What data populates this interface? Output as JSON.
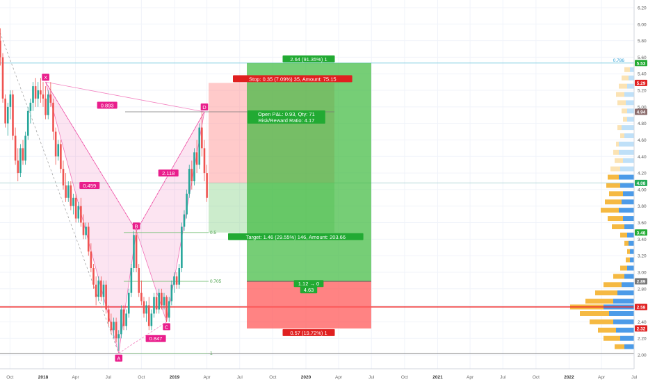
{
  "chart_data": {
    "type": "candlestick",
    "title": "",
    "xlabel": "",
    "ylabel": "",
    "ylim": [
      2.0,
      6.3
    ],
    "y_ticks": [
      2.0,
      2.2,
      2.4,
      2.6,
      2.8,
      3.0,
      3.2,
      3.4,
      3.6,
      3.8,
      4.0,
      4.2,
      4.4,
      4.6,
      4.8,
      5.0,
      5.2,
      5.4,
      5.6,
      5.8,
      6.0,
      6.2
    ],
    "y_tick_labels": [
      "2.00",
      "2.20",
      "2.40",
      "2.60",
      "2.80",
      "3.00",
      "3.20",
      "3.40",
      "3.60",
      "3.80",
      "4.00",
      "4.20",
      "4.40",
      "4.60",
      "4.80",
      "5.00",
      "5.20",
      "5.40",
      "5.60",
      "5.80",
      "6.00",
      "6.20"
    ],
    "x_ticks": [
      {
        "date": "2017-10-01",
        "label": "Oct"
      },
      {
        "date": "2018-01-01",
        "label": "2018"
      },
      {
        "date": "2018-04-01",
        "label": "Apr"
      },
      {
        "date": "2018-07-01",
        "label": "Jul"
      },
      {
        "date": "2018-10-01",
        "label": "Oct"
      },
      {
        "date": "2019-01-01",
        "label": "2019"
      },
      {
        "date": "2019-04-01",
        "label": "Apr"
      },
      {
        "date": "2019-07-01",
        "label": "Jul"
      },
      {
        "date": "2019-10-01",
        "label": "Oct"
      },
      {
        "date": "2020-01-01",
        "label": "2020"
      },
      {
        "date": "2020-04-01",
        "label": "Apr"
      },
      {
        "date": "2020-07-01",
        "label": "Jul"
      },
      {
        "date": "2020-10-01",
        "label": "Oct"
      },
      {
        "date": "2021-01-01",
        "label": "2021"
      },
      {
        "date": "2021-04-01",
        "label": "Apr"
      },
      {
        "date": "2021-07-01",
        "label": "Jul"
      },
      {
        "date": "2021-10-01",
        "label": "Oct"
      },
      {
        "date": "2022-01-01",
        "label": "2022"
      },
      {
        "date": "2022-04-01",
        "label": "Apr"
      },
      {
        "date": "2022-07-01",
        "label": "Jul"
      }
    ],
    "candles": [
      [
        "2017-09-04",
        5.8,
        5.95,
        5.5,
        5.6
      ],
      [
        "2017-09-11",
        5.6,
        5.65,
        5.05,
        5.1
      ],
      [
        "2017-09-18",
        5.1,
        5.15,
        4.75,
        4.8
      ],
      [
        "2017-09-25",
        4.8,
        5.05,
        4.65,
        5.0
      ],
      [
        "2017-10-02",
        5.0,
        5.2,
        4.85,
        5.15
      ],
      [
        "2017-10-09",
        5.15,
        5.2,
        4.6,
        4.65
      ],
      [
        "2017-10-16",
        4.65,
        4.75,
        4.3,
        4.35
      ],
      [
        "2017-10-23",
        4.35,
        4.5,
        4.1,
        4.2
      ],
      [
        "2017-10-30",
        4.2,
        4.55,
        4.15,
        4.5
      ],
      [
        "2017-11-06",
        4.5,
        4.6,
        4.3,
        4.35
      ],
      [
        "2017-11-13",
        4.35,
        4.7,
        4.3,
        4.65
      ],
      [
        "2017-11-20",
        4.65,
        5.0,
        4.6,
        4.95
      ],
      [
        "2017-11-27",
        4.95,
        5.1,
        4.8,
        5.05
      ],
      [
        "2017-12-04",
        5.05,
        5.3,
        4.95,
        5.25
      ],
      [
        "2017-12-11",
        5.25,
        5.35,
        5.0,
        5.1
      ],
      [
        "2017-12-18",
        5.1,
        5.3,
        5.0,
        5.2
      ],
      [
        "2017-12-25",
        5.2,
        5.35,
        5.05,
        5.15
      ],
      [
        "2018-01-01",
        5.15,
        5.3,
        5.0,
        5.1
      ],
      [
        "2018-01-08",
        5.1,
        5.25,
        4.85,
        4.9
      ],
      [
        "2018-01-15",
        4.9,
        5.2,
        4.85,
        5.15
      ],
      [
        "2018-01-22",
        5.15,
        5.3,
        5.0,
        5.05
      ],
      [
        "2018-01-29",
        5.05,
        5.1,
        4.6,
        4.7
      ],
      [
        "2018-02-05",
        4.7,
        4.75,
        4.3,
        4.4
      ],
      [
        "2018-02-12",
        4.4,
        4.6,
        4.35,
        4.55
      ],
      [
        "2018-02-19",
        4.55,
        4.6,
        4.2,
        4.25
      ],
      [
        "2018-02-26",
        4.25,
        4.35,
        4.0,
        4.05
      ],
      [
        "2018-03-05",
        4.05,
        4.2,
        3.85,
        3.9
      ],
      [
        "2018-03-12",
        3.9,
        4.1,
        3.85,
        4.05
      ],
      [
        "2018-03-19",
        4.05,
        4.1,
        3.75,
        3.8
      ],
      [
        "2018-03-26",
        3.8,
        3.95,
        3.7,
        3.9
      ],
      [
        "2018-04-02",
        3.9,
        3.95,
        3.6,
        3.65
      ],
      [
        "2018-04-09",
        3.65,
        3.85,
        3.6,
        3.8
      ],
      [
        "2018-04-16",
        3.8,
        3.9,
        3.55,
        3.6
      ],
      [
        "2018-04-23",
        3.6,
        3.7,
        3.4,
        3.45
      ],
      [
        "2018-04-30",
        3.45,
        3.6,
        3.4,
        3.55
      ],
      [
        "2018-05-07",
        3.55,
        3.6,
        3.2,
        3.25
      ],
      [
        "2018-05-14",
        3.25,
        3.35,
        3.0,
        3.05
      ],
      [
        "2018-05-21",
        3.05,
        3.1,
        2.8,
        2.85
      ],
      [
        "2018-05-28",
        2.85,
        2.95,
        2.6,
        2.7
      ],
      [
        "2018-06-04",
        2.7,
        2.95,
        2.65,
        2.9
      ],
      [
        "2018-06-11",
        2.9,
        2.95,
        2.65,
        2.7
      ],
      [
        "2018-06-18",
        2.7,
        2.9,
        2.6,
        2.85
      ],
      [
        "2018-06-25",
        2.85,
        2.9,
        2.5,
        2.55
      ],
      [
        "2018-07-02",
        2.55,
        2.6,
        2.35,
        2.4
      ],
      [
        "2018-07-09",
        2.4,
        2.5,
        2.25,
        2.3
      ],
      [
        "2018-07-16",
        2.3,
        2.45,
        2.2,
        2.4
      ],
      [
        "2018-07-23",
        2.4,
        2.45,
        2.15,
        2.2
      ],
      [
        "2018-07-30",
        2.2,
        2.3,
        2.05,
        2.25
      ],
      [
        "2018-08-06",
        2.25,
        2.6,
        2.2,
        2.55
      ],
      [
        "2018-08-13",
        2.55,
        2.6,
        2.3,
        2.35
      ],
      [
        "2018-08-20",
        2.35,
        2.55,
        2.3,
        2.5
      ],
      [
        "2018-08-27",
        2.5,
        2.8,
        2.45,
        2.75
      ],
      [
        "2018-09-03",
        2.75,
        3.1,
        2.7,
        3.05
      ],
      [
        "2018-09-10",
        3.05,
        3.5,
        3.0,
        3.45
      ],
      [
        "2018-09-17",
        3.45,
        3.5,
        3.0,
        3.05
      ],
      [
        "2018-09-24",
        3.05,
        3.1,
        2.7,
        2.75
      ],
      [
        "2018-10-01",
        2.75,
        2.9,
        2.6,
        2.65
      ],
      [
        "2018-10-08",
        2.65,
        2.7,
        2.45,
        2.5
      ],
      [
        "2018-10-15",
        2.5,
        2.65,
        2.4,
        2.6
      ],
      [
        "2018-10-22",
        2.6,
        2.7,
        2.3,
        2.35
      ],
      [
        "2018-10-29",
        2.35,
        2.55,
        2.3,
        2.5
      ],
      [
        "2018-11-05",
        2.5,
        2.75,
        2.45,
        2.7
      ],
      [
        "2018-11-12",
        2.7,
        2.75,
        2.5,
        2.55
      ],
      [
        "2018-11-19",
        2.55,
        2.8,
        2.5,
        2.75
      ],
      [
        "2018-11-26",
        2.75,
        2.8,
        2.55,
        2.6
      ],
      [
        "2018-12-03",
        2.6,
        2.75,
        2.55,
        2.7
      ],
      [
        "2018-12-10",
        2.7,
        2.72,
        2.4,
        2.45
      ],
      [
        "2018-12-17",
        2.45,
        2.7,
        2.4,
        2.65
      ],
      [
        "2018-12-24",
        2.65,
        2.9,
        2.6,
        2.85
      ],
      [
        "2018-12-31",
        2.85,
        3.0,
        2.75,
        2.95
      ],
      [
        "2019-01-07",
        2.95,
        3.0,
        2.8,
        2.85
      ],
      [
        "2019-01-14",
        2.85,
        3.1,
        2.8,
        3.05
      ],
      [
        "2019-01-21",
        3.05,
        3.6,
        3.0,
        3.55
      ],
      [
        "2019-01-28",
        3.55,
        3.75,
        3.5,
        3.7
      ],
      [
        "2019-02-04",
        3.7,
        4.0,
        3.65,
        3.95
      ],
      [
        "2019-02-11",
        3.95,
        4.3,
        3.9,
        4.25
      ],
      [
        "2019-02-18",
        4.25,
        4.35,
        4.0,
        4.1
      ],
      [
        "2019-02-25",
        4.1,
        4.5,
        4.05,
        4.45
      ],
      [
        "2019-03-04",
        4.45,
        4.6,
        4.2,
        4.3
      ],
      [
        "2019-03-11",
        4.3,
        4.8,
        4.25,
        4.75
      ],
      [
        "2019-03-18",
        4.75,
        4.94,
        4.4,
        4.5
      ],
      [
        "2019-03-25",
        4.5,
        4.6,
        4.1,
        4.2
      ],
      [
        "2019-04-01",
        4.2,
        4.3,
        3.85,
        3.9
      ]
    ],
    "harmonic_pattern": {
      "points": [
        {
          "label": "X",
          "date": "2018-01-08",
          "price": 5.3
        },
        {
          "label": "A",
          "date": "2018-07-30",
          "price": 2.02
        },
        {
          "label": "B",
          "date": "2018-09-17",
          "price": 3.5
        },
        {
          "label": "C",
          "date": "2018-12-10",
          "price": 2.4
        },
        {
          "label": "D",
          "date": "2019-03-25",
          "price": 4.94
        }
      ],
      "ratios": [
        {
          "label": "0.459",
          "date": "2018-05-10",
          "price": 4.05
        },
        {
          "label": "0.847",
          "date": "2018-11-10",
          "price": 2.2
        },
        {
          "label": "2.118",
          "date": "2018-12-15",
          "price": 4.2
        },
        {
          "label": "0.893",
          "date": "2018-06-28",
          "price": 5.02
        }
      ]
    },
    "fib_levels": [
      {
        "label": "0.5",
        "price": 3.48
      },
      {
        "label": "0.705",
        "price": 2.89
      },
      {
        "label": "1",
        "price": 2.02
      }
    ],
    "position_small": {
      "entry": 4.08,
      "stop": 5.29,
      "target": 3.48,
      "start": "2019-04-01",
      "end": "2019-07-21",
      "stop_label": "Stop: 0.35 (7.09%) 35, Amount: 75.15",
      "target_label": "Target: 1.46 (29.55%) 146, Amount: 203.66",
      "pnl_label": "Open P&L: 0.93, Qty: 71",
      "rr_label": "Risk/Reward Ratio: 4.17"
    },
    "position_large": {
      "entry": 2.89,
      "stop": 2.32,
      "target": 5.53,
      "start": "2019-07-21",
      "end": "2020-07-01",
      "top_label": "2.64 (91.35%) 1",
      "bottom_label": "0.57 (19.72%) 1",
      "rr_label_1": "1.12 → 0",
      "rr_label_2": "4.63"
    },
    "horizontal_lines": [
      {
        "price": 5.53,
        "color": "#7fcde0",
        "label": "0.786"
      },
      {
        "price": 4.08,
        "color": "#b2d8d8",
        "label": ""
      },
      {
        "price": 2.58,
        "color": "#ee2222",
        "label": ""
      },
      {
        "price": 2.02,
        "color": "#888888",
        "label": ""
      }
    ],
    "price_labels": [
      {
        "value": "5.53",
        "price": 5.53,
        "color": "#22aa33"
      },
      {
        "value": "5.29",
        "price": 5.29,
        "color": "#e02020"
      },
      {
        "value": "4.94",
        "price": 4.94,
        "color": "#8a6b6b"
      },
      {
        "value": "4.08",
        "price": 4.08,
        "color": "#22aa55"
      },
      {
        "value": "3.48",
        "price": 3.48,
        "color": "#22aa33"
      },
      {
        "value": "2.89",
        "price": 2.89,
        "color": "#777777"
      },
      {
        "value": "2.58",
        "price": 2.58,
        "color": "#e02020"
      },
      {
        "value": "2.32",
        "price": 2.32,
        "color": "#e02020"
      }
    ],
    "volume_profile": [
      [
        5.45,
        14,
        6,
        false
      ],
      [
        5.35,
        18,
        8,
        false
      ],
      [
        5.25,
        22,
        10,
        false
      ],
      [
        5.15,
        26,
        14,
        false
      ],
      [
        5.05,
        24,
        12,
        false
      ],
      [
        4.95,
        18,
        10,
        false
      ],
      [
        4.85,
        16,
        10,
        false
      ],
      [
        4.75,
        24,
        18,
        false
      ],
      [
        4.65,
        20,
        14,
        false
      ],
      [
        4.55,
        26,
        22,
        false
      ],
      [
        4.45,
        30,
        22,
        false
      ],
      [
        4.35,
        28,
        16,
        false
      ],
      [
        4.25,
        34,
        20,
        false
      ],
      [
        4.15,
        38,
        22,
        true
      ],
      [
        4.05,
        40,
        20,
        true
      ],
      [
        3.95,
        36,
        16,
        true
      ],
      [
        3.85,
        42,
        18,
        true
      ],
      [
        3.75,
        48,
        22,
        true
      ],
      [
        3.65,
        38,
        16,
        true
      ],
      [
        3.55,
        32,
        14,
        true
      ],
      [
        3.45,
        20,
        10,
        true
      ],
      [
        3.35,
        14,
        8,
        true
      ],
      [
        3.25,
        10,
        6,
        true
      ],
      [
        3.15,
        12,
        6,
        true
      ],
      [
        3.05,
        20,
        10,
        true
      ],
      [
        2.95,
        30,
        14,
        true
      ],
      [
        2.85,
        44,
        18,
        true
      ],
      [
        2.75,
        56,
        24,
        true
      ],
      [
        2.65,
        70,
        30,
        true
      ],
      [
        2.58,
        92,
        44,
        true
      ],
      [
        2.5,
        78,
        36,
        true
      ],
      [
        2.4,
        64,
        30,
        true
      ],
      [
        2.3,
        52,
        26,
        true
      ],
      [
        2.2,
        44,
        20,
        true
      ],
      [
        2.1,
        28,
        14,
        true
      ]
    ],
    "colors": {
      "up": "#26a69a",
      "down": "#ef5350",
      "pattern_fill": "#e91e8c",
      "profile_up": "#4c9be8",
      "profile_down": "#f5b942",
      "profile_up_light": "#bfe0f8",
      "profile_down_light": "#fbe3b4"
    }
  }
}
